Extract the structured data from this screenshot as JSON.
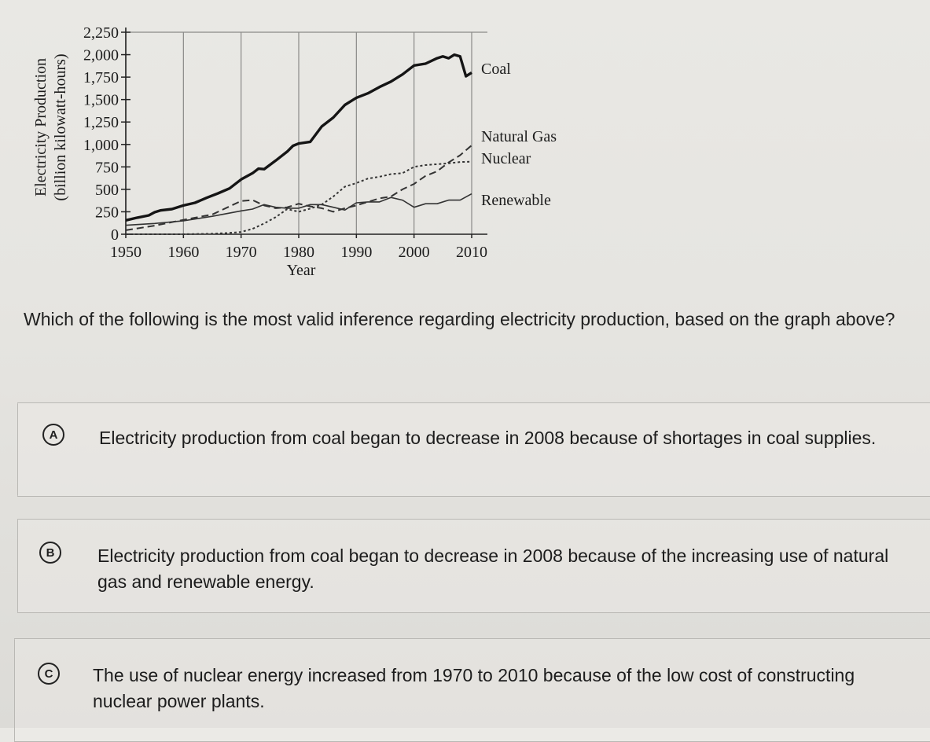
{
  "question": {
    "text": "Which of the following is the most valid inference regarding electricity production, based on the graph above?"
  },
  "choices": [
    {
      "letter": "A",
      "text": "Electricity production from coal began to decrease in 2008 because of shortages in coal supplies."
    },
    {
      "letter": "B",
      "text": "Electricity production from coal began to decrease in 2008 because of the increasing use of natural gas and renewable energy."
    },
    {
      "letter": "C",
      "text": "The use of nuclear energy increased from 1970 to 2010 because of the low cost of constructing nuclear power plants."
    }
  ],
  "chart_data": {
    "type": "line",
    "xlabel": "Year",
    "ylabel": "Electricity Production",
    "ylabel2": "(billion kilowatt-hours)",
    "xlim": [
      1950,
      2010
    ],
    "ylim": [
      0,
      2250
    ],
    "xticks": [
      "1950",
      "1960",
      "1970",
      "1980",
      "1990",
      "2000",
      "2010"
    ],
    "yticks": [
      "0",
      "250",
      "500",
      "750",
      "1,000",
      "1,250",
      "1,500",
      "1,750",
      "2,000",
      "2,250"
    ],
    "grid": true,
    "series": [
      {
        "name": "Coal",
        "style": "solid-thick",
        "x": [
          1950,
          1952,
          1954,
          1955,
          1956,
          1958,
          1960,
          1962,
          1964,
          1966,
          1968,
          1970,
          1972,
          1973,
          1974,
          1976,
          1978,
          1979,
          1980,
          1982,
          1984,
          1986,
          1988,
          1990,
          1992,
          1994,
          1996,
          1998,
          2000,
          2002,
          2004,
          2005,
          2006,
          2007,
          2008,
          2009,
          2010
        ],
        "y": [
          155,
          185,
          210,
          245,
          265,
          280,
          320,
          350,
          405,
          455,
          510,
          610,
          680,
          730,
          725,
          820,
          920,
          985,
          1010,
          1030,
          1200,
          1300,
          1440,
          1520,
          1570,
          1640,
          1700,
          1780,
          1880,
          1900,
          1960,
          1980,
          1960,
          2000,
          1980,
          1760,
          1800
        ]
      },
      {
        "name": "Natural Gas",
        "style": "dashed",
        "x": [
          1950,
          1955,
          1960,
          1965,
          1970,
          1972,
          1974,
          1976,
          1978,
          1980,
          1982,
          1984,
          1986,
          1988,
          1990,
          1992,
          1994,
          1996,
          1998,
          2000,
          2002,
          2004,
          2006,
          2008,
          2010
        ],
        "y": [
          45,
          95,
          160,
          220,
          370,
          380,
          320,
          290,
          300,
          340,
          310,
          290,
          250,
          290,
          320,
          360,
          400,
          420,
          500,
          560,
          650,
          700,
          800,
          880,
          990
        ]
      },
      {
        "name": "Nuclear",
        "style": "dotted",
        "x": [
          1950,
          1955,
          1960,
          1965,
          1968,
          1970,
          1972,
          1974,
          1976,
          1978,
          1980,
          1982,
          1984,
          1986,
          1988,
          1990,
          1992,
          1994,
          1996,
          1998,
          2000,
          2002,
          2004,
          2006,
          2008,
          2010
        ],
        "y": [
          0,
          0,
          0,
          5,
          15,
          25,
          60,
          120,
          190,
          280,
          250,
          285,
          330,
          420,
          530,
          570,
          620,
          640,
          670,
          680,
          750,
          770,
          780,
          790,
          805,
          808
        ]
      },
      {
        "name": "Renewable",
        "style": "solid-thin",
        "x": [
          1950,
          1955,
          1960,
          1965,
          1970,
          1972,
          1974,
          1976,
          1978,
          1980,
          1982,
          1984,
          1986,
          1988,
          1990,
          1992,
          1994,
          1996,
          1998,
          2000,
          2002,
          2004,
          2006,
          2008,
          2010
        ],
        "y": [
          100,
          120,
          150,
          200,
          260,
          280,
          330,
          300,
          290,
          290,
          330,
          330,
          300,
          270,
          350,
          360,
          360,
          410,
          380,
          300,
          340,
          340,
          380,
          380,
          450
        ]
      }
    ]
  }
}
